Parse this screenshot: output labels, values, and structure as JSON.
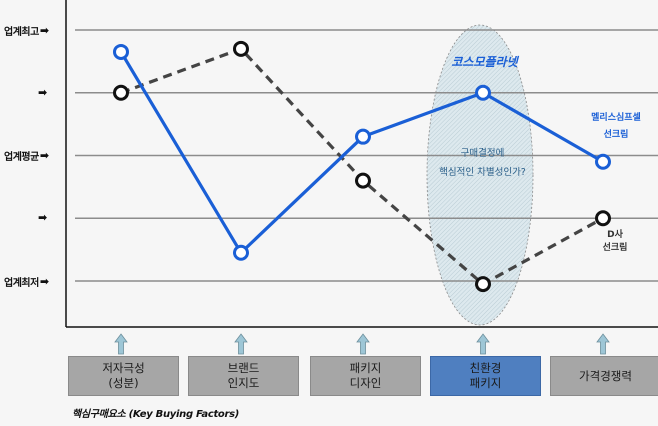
{
  "chart_data": {
    "type": "line",
    "title": "",
    "xlabel": "핵심구매요소 (Key Buying Factors)",
    "ylabel": "",
    "y_levels": [
      {
        "value": 5,
        "label": "업계최고"
      },
      {
        "value": 4,
        "label": ""
      },
      {
        "value": 3,
        "label": "업계평균"
      },
      {
        "value": 2,
        "label": ""
      },
      {
        "value": 1,
        "label": "업계최저"
      }
    ],
    "ylim": [
      0.3,
      5.4
    ],
    "grid": true,
    "categories": [
      "저자극성\n(성분)",
      "브랜드\n인지도",
      "패키지\n디자인",
      "친환경\n패키지",
      "가격경쟁력"
    ],
    "series": [
      {
        "name": "코스모플라넷",
        "style": "solid",
        "color": "#1a5fd6",
        "values": [
          4.65,
          1.45,
          3.3,
          4.0,
          2.9
        ]
      },
      {
        "name": "D사 선크림",
        "style": "dashed",
        "color": "#444444",
        "values": [
          4.0,
          4.7,
          2.6,
          0.95,
          2.0
        ]
      }
    ],
    "annotations": [
      {
        "text": "코스모플라넷",
        "target": "series-0",
        "position": "above 친환경 패키지"
      },
      {
        "text": "멜리스심프셀\n선크림",
        "position": "above 가격경쟁력 blue point"
      },
      {
        "text": "D사\n선크림",
        "position": "below 가격경쟁력 black point"
      },
      {
        "text": "구매결정에\n핵심적인 차별성인가?",
        "position": "inside highlight ellipse over 친환경 패키지"
      }
    ],
    "highlight_category": "친환경\n패키지",
    "legend": "none"
  },
  "y_axis": {
    "labels": [
      "업계최고",
      "",
      "업계평균",
      "",
      "업계최저"
    ]
  },
  "annotations": {
    "brand": "코스모플라넷",
    "competitor_blue": "멜리스심프셀\n선크림",
    "competitor_black": "D사\n선크림",
    "question": "구매결정에\n핵심적인 차별성인가?"
  },
  "factors": [
    {
      "label": "저자극성\n(성분)",
      "highlight": false
    },
    {
      "label": "브랜드\n인지도",
      "highlight": false
    },
    {
      "label": "패키지\n디자인",
      "highlight": false
    },
    {
      "label": "친환경\n패키지",
      "highlight": true
    },
    {
      "label": "가격경쟁력",
      "highlight": false
    }
  ],
  "caption": "핵심구매요소 (Key Buying Factors)",
  "colors": {
    "blue_series": "#1a5fd6",
    "dashed_series": "#444444",
    "gridline": "#8c8c8c",
    "factor_box": "#a6a6a6",
    "factor_highlight": "#4f7fc0",
    "ellipse_fill": "#d7e6ec",
    "up_arrow": "#9dc6d6"
  }
}
